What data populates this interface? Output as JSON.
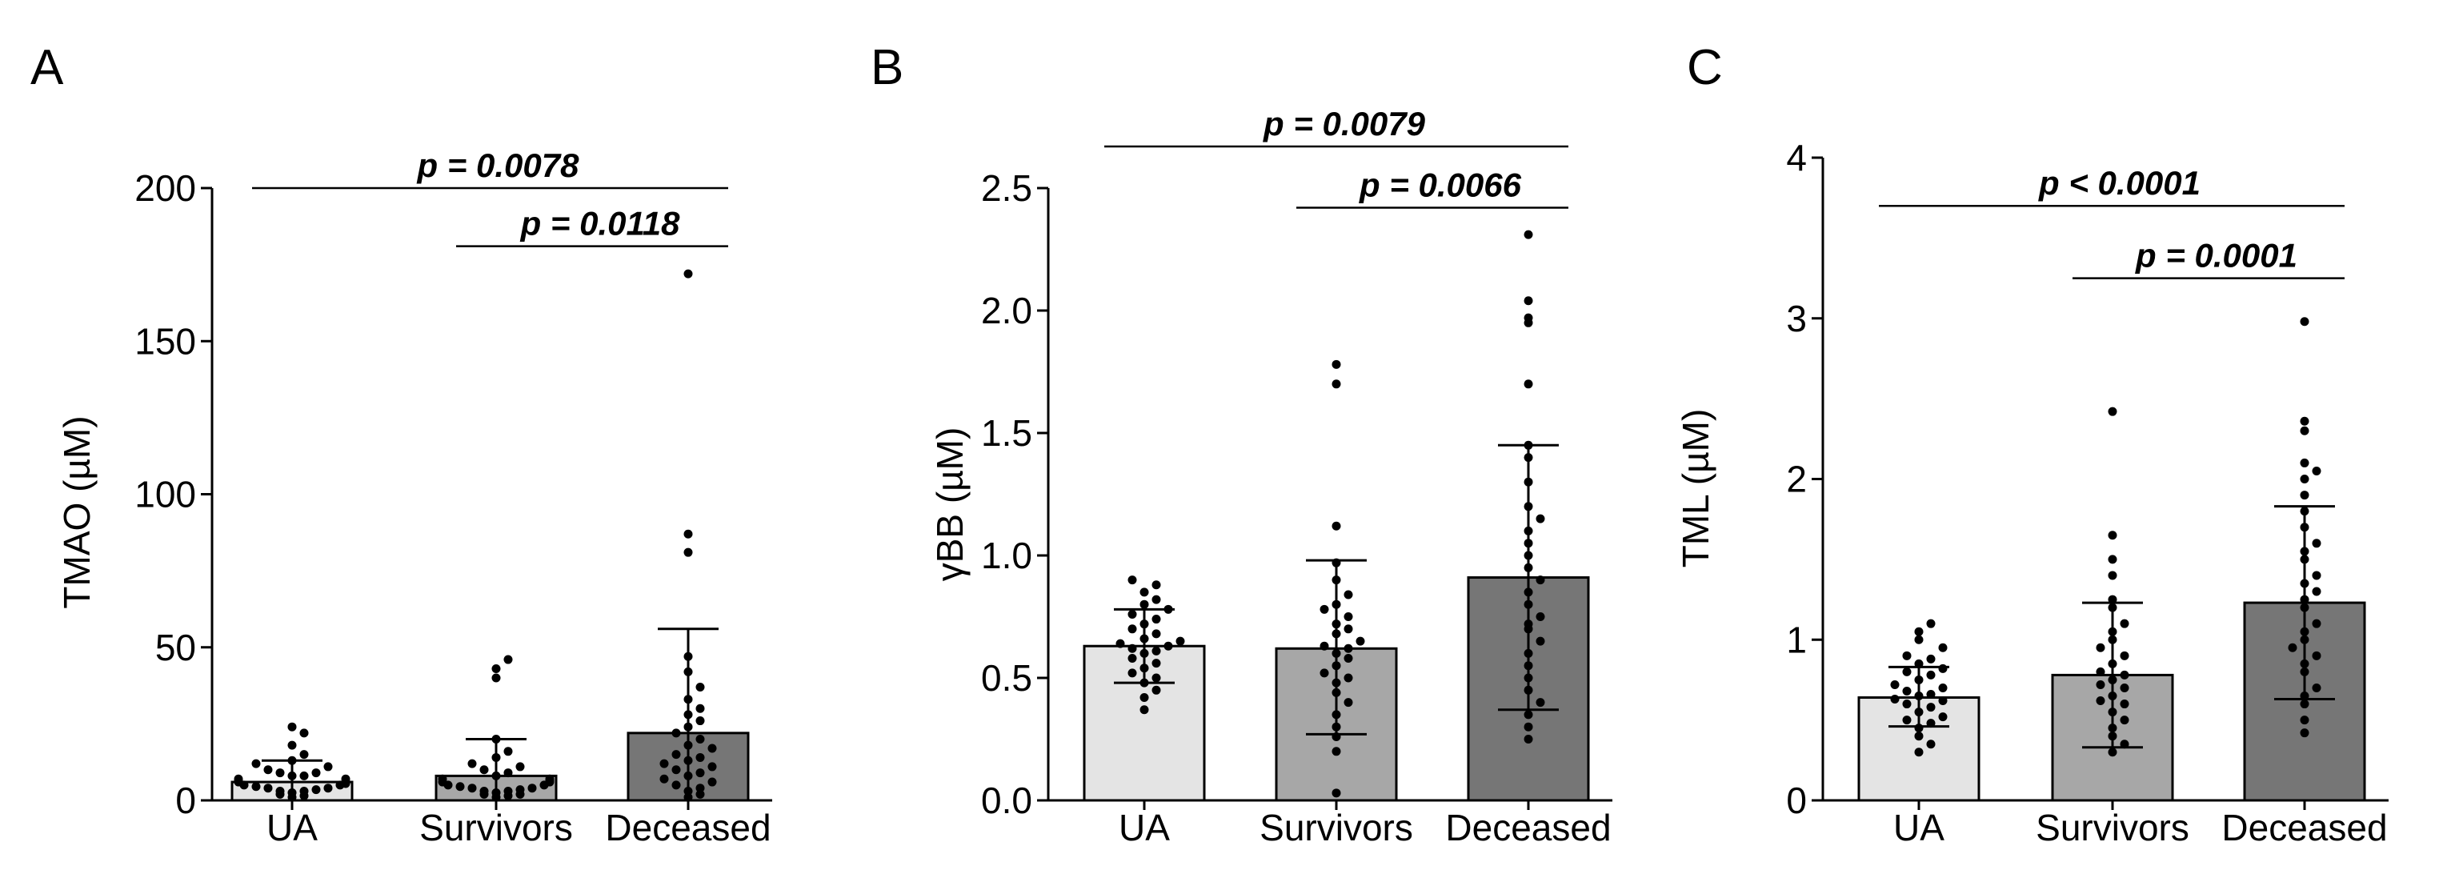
{
  "colors": {
    "UA": "#e4e4e4",
    "Survivors": "#a7a7a7",
    "Deceased": "#767676",
    "ink": "#000000"
  },
  "chart_data": [
    {
      "type": "bar",
      "panel": "A",
      "categories": [
        "UA",
        "Survivors",
        "Deceased"
      ],
      "ylabel": "TMAO (µM)",
      "ylim": [
        0,
        200
      ],
      "yticks": [
        0,
        50,
        100,
        150,
        200
      ],
      "ytick_labels": [
        "0",
        "50",
        "100",
        "150",
        "200"
      ],
      "means": [
        6,
        8,
        22
      ],
      "sd_low": [
        0,
        0,
        0
      ],
      "sd_high": [
        13,
        20,
        56
      ],
      "points": [
        [
          1,
          1.5,
          2,
          2.5,
          3,
          3,
          3.5,
          4,
          4,
          4.5,
          5,
          5,
          5.5,
          6,
          6,
          6.5,
          7,
          7,
          8,
          8,
          9,
          9,
          10,
          11,
          12,
          13,
          15,
          18,
          22,
          24
        ],
        [
          1,
          1.5,
          2,
          2,
          2.5,
          3,
          3,
          3.5,
          4,
          4,
          4.5,
          5,
          5,
          6,
          6,
          6.5,
          7,
          7,
          8,
          9,
          10,
          11,
          12,
          14,
          16,
          20,
          40,
          43,
          46
        ],
        [
          1,
          2,
          3,
          4,
          5,
          6,
          7,
          8,
          9,
          10,
          11,
          12,
          13,
          14,
          15,
          17,
          18,
          20,
          22,
          24,
          26,
          28,
          30,
          33,
          37,
          42,
          47,
          81,
          87,
          172
        ]
      ],
      "comparisons": [
        {
          "from": "UA",
          "to": "Deceased",
          "label": "p = 0.0078",
          "y": 200
        },
        {
          "from": "Survivors",
          "to": "Deceased",
          "label": "p = 0.0118",
          "y": 181
        }
      ]
    },
    {
      "type": "bar",
      "panel": "B",
      "categories": [
        "UA",
        "Survivors",
        "Deceased"
      ],
      "ylabel": "γBB (µM)",
      "ylim": [
        0,
        2.5
      ],
      "yticks": [
        0,
        0.5,
        1.0,
        1.5,
        2.0,
        2.5
      ],
      "ytick_labels": [
        "0.0",
        "0.5",
        "1.0",
        "1.5",
        "2.0",
        "2.5"
      ],
      "means": [
        0.63,
        0.62,
        0.91
      ],
      "sd_low": [
        0.48,
        0.27,
        0.37
      ],
      "sd_high": [
        0.78,
        0.98,
        1.45
      ],
      "points": [
        [
          0.37,
          0.42,
          0.45,
          0.48,
          0.5,
          0.52,
          0.54,
          0.56,
          0.58,
          0.6,
          0.61,
          0.62,
          0.63,
          0.64,
          0.65,
          0.66,
          0.68,
          0.7,
          0.72,
          0.74,
          0.76,
          0.78,
          0.8,
          0.82,
          0.85,
          0.88,
          0.9
        ],
        [
          0.03,
          0.2,
          0.26,
          0.3,
          0.35,
          0.4,
          0.44,
          0.48,
          0.5,
          0.52,
          0.55,
          0.58,
          0.6,
          0.62,
          0.63,
          0.65,
          0.68,
          0.7,
          0.72,
          0.75,
          0.78,
          0.8,
          0.84,
          0.9,
          0.97,
          1.12,
          1.7,
          1.78
        ],
        [
          0.25,
          0.3,
          0.35,
          0.4,
          0.45,
          0.5,
          0.55,
          0.6,
          0.65,
          0.7,
          0.72,
          0.75,
          0.8,
          0.85,
          0.9,
          0.95,
          1.0,
          1.05,
          1.1,
          1.15,
          1.2,
          1.3,
          1.4,
          1.45,
          1.7,
          1.95,
          1.97,
          2.04,
          2.31
        ]
      ],
      "comparisons": [
        {
          "from": "UA",
          "to": "Deceased",
          "label": "p = 0.0079",
          "y": 2.67
        },
        {
          "from": "Survivors",
          "to": "Deceased",
          "label": "p = 0.0066",
          "y": 2.42
        }
      ]
    },
    {
      "type": "bar",
      "panel": "C",
      "categories": [
        "UA",
        "Survivors",
        "Deceased"
      ],
      "ylabel": "TML (µM)",
      "ylim": [
        0,
        4
      ],
      "yticks": [
        0,
        1,
        2,
        3,
        4
      ],
      "ytick_labels": [
        "0",
        "1",
        "2",
        "3",
        "4"
      ],
      "means": [
        0.64,
        0.78,
        1.23
      ],
      "sd_low": [
        0.46,
        0.33,
        0.63
      ],
      "sd_high": [
        0.83,
        1.23,
        1.83
      ],
      "points": [
        [
          0.3,
          0.35,
          0.4,
          0.45,
          0.48,
          0.5,
          0.52,
          0.55,
          0.58,
          0.6,
          0.62,
          0.63,
          0.65,
          0.66,
          0.68,
          0.7,
          0.72,
          0.75,
          0.78,
          0.8,
          0.82,
          0.85,
          0.88,
          0.9,
          0.95,
          1.0,
          1.05,
          1.1
        ],
        [
          0.3,
          0.35,
          0.4,
          0.45,
          0.5,
          0.55,
          0.6,
          0.62,
          0.65,
          0.7,
          0.72,
          0.75,
          0.78,
          0.8,
          0.85,
          0.9,
          0.95,
          1.0,
          1.05,
          1.1,
          1.2,
          1.25,
          1.4,
          1.5,
          1.65,
          2.42
        ],
        [
          0.42,
          0.5,
          0.6,
          0.65,
          0.7,
          0.8,
          0.85,
          0.9,
          0.95,
          1.0,
          1.05,
          1.1,
          1.2,
          1.25,
          1.3,
          1.35,
          1.4,
          1.5,
          1.55,
          1.6,
          1.7,
          1.8,
          1.9,
          2.0,
          2.05,
          2.1,
          2.3,
          2.36,
          2.98
        ]
      ],
      "comparisons": [
        {
          "from": "UA",
          "to": "Deceased",
          "label": "p < 0.0001",
          "y": 3.7
        },
        {
          "from": "Survivors",
          "to": "Deceased",
          "label": "p = 0.0001",
          "y": 3.25
        }
      ]
    }
  ]
}
